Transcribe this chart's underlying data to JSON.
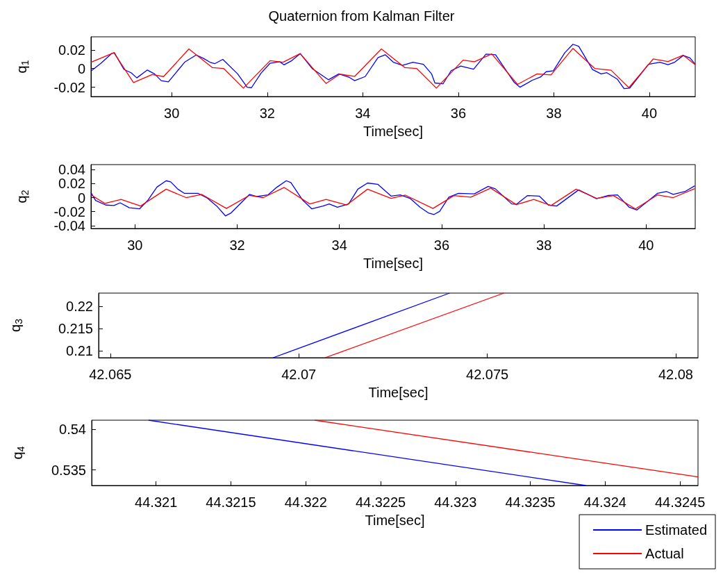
{
  "chart_data": [
    {
      "type": "line",
      "title": "Quaternion from Kalman Filter",
      "xlabel": "Time[sec]",
      "ylabel": "q$_{1}$",
      "xlim": [
        28.31,
        40.96
      ],
      "ylim": [
        -0.03,
        0.034
      ],
      "xticks": [
        30,
        32,
        34,
        36,
        38,
        40
      ],
      "yticks": [
        -0.02,
        0,
        0.02
      ],
      "series": [
        {
          "color": "#0000ff",
          "x": [
            28.32,
            28.52,
            28.74,
            28.8,
            29.0,
            29.15,
            29.27,
            29.49,
            29.64,
            29.78,
            29.93,
            30.27,
            30.51,
            30.66,
            30.8,
            30.9,
            31.07,
            31.38,
            31.58,
            31.67,
            31.87,
            32.06,
            32.26,
            32.35,
            32.5,
            32.69,
            32.94,
            33.28,
            33.5,
            33.72,
            33.83,
            34.05,
            34.32,
            34.47,
            34.64,
            34.83,
            35.05,
            35.27,
            35.44,
            35.51,
            35.68,
            35.85,
            36.05,
            36.32,
            36.58,
            36.78,
            37.17,
            37.29,
            37.55,
            37.72,
            37.84,
            37.99,
            38.23,
            38.4,
            38.52,
            38.81,
            38.99,
            39.11,
            39.33,
            39.47,
            39.59,
            39.98,
            40.22,
            40.39,
            40.53,
            40.71,
            40.85,
            40.96
          ],
          "values": [
            -0.0023,
            0.0057,
            0.016,
            0.017,
            -0.001,
            -0.0045,
            -0.01,
            -0.0016,
            -0.0057,
            -0.013,
            -0.0143,
            0.0068,
            0.0145,
            0.011,
            0.0068,
            0.0052,
            0.0098,
            -0.0057,
            -0.02,
            -0.0205,
            -0.005,
            0.0057,
            0.0073,
            0.004,
            0.008,
            0.016,
            0,
            -0.012,
            -0.0057,
            -0.0095,
            -0.013,
            -0.0086,
            0.0118,
            0.0148,
            0.0068,
            0.0034,
            0.0068,
            0.0045,
            -0.0057,
            -0.0155,
            -0.0164,
            -0.0023,
            0.0027,
            -0.0007,
            0.0155,
            0.0148,
            -0.0148,
            -0.02,
            -0.0125,
            -0.0091,
            -0.0034,
            -0.0023,
            0.017,
            0.026,
            0.0239,
            -0.0011,
            -0.0057,
            -0.0045,
            -0.0114,
            -0.0216,
            -0.0209,
            0.0045,
            0.0068,
            0.0041,
            0.0068,
            0.014,
            0.0114,
            0.0045
          ]
        },
        {
          "color": "#ff0000",
          "x": [
            28.31,
            28.79,
            29.2,
            29.59,
            29.83,
            30.36,
            30.85,
            31.09,
            31.5,
            32.06,
            32.33,
            32.69,
            33.23,
            33.52,
            33.83,
            34.39,
            34.88,
            35.13,
            35.54,
            36.1,
            36.34,
            36.7,
            37.24,
            37.65,
            37.94,
            38.4,
            38.86,
            39.2,
            39.57,
            40.08,
            40.39,
            40.71,
            40.96
          ],
          "values": [
            0.0068,
            0.017,
            -0.015,
            -0.0064,
            -0.0086,
            0.021,
            0.001,
            0,
            -0.021,
            0.0084,
            0.0068,
            0.016,
            -0.016,
            -0.006,
            -0.0084,
            0.021,
            0.001,
            0,
            -0.021,
            0.009,
            0.0073,
            0.0157,
            -0.017,
            -0.0057,
            -0.0068,
            0.0216,
            0,
            -0.0018,
            -0.0205,
            0.0102,
            0.0075,
            0.0143,
            0.004
          ]
        }
      ]
    },
    {
      "type": "line",
      "xlabel": "Time[sec]",
      "ylabel": "q$_{2}$",
      "xlim": [
        29.14,
        40.96
      ],
      "ylim": [
        -0.044,
        0.047
      ],
      "xticks": [
        30,
        32,
        34,
        36,
        38,
        40
      ],
      "yticks": [
        -0.04,
        -0.02,
        0,
        0.02,
        0.04
      ],
      "series": [
        {
          "color": "#0000ff",
          "x": [
            29.14,
            29.23,
            29.43,
            29.59,
            29.71,
            29.89,
            30.09,
            30.25,
            30.43,
            30.61,
            30.7,
            30.84,
            30.97,
            31.24,
            31.42,
            31.6,
            31.77,
            31.88,
            32.24,
            32.38,
            32.6,
            32.78,
            32.96,
            33.05,
            33.28,
            33.46,
            33.68,
            33.8,
            33.96,
            34.18,
            34.36,
            34.55,
            34.75,
            35.01,
            35.19,
            35.38,
            35.58,
            35.74,
            35.85,
            35.96,
            36.14,
            36.33,
            36.64,
            36.91,
            37.05,
            37.37,
            37.46,
            37.68,
            37.91,
            38.09,
            38.25,
            38.68,
            39.03,
            39.26,
            39.44,
            39.67,
            39.82,
            40.22,
            40.4,
            40.53,
            40.76,
            40.95
          ],
          "values": [
            0.007,
            -0.004,
            -0.0106,
            -0.0112,
            -0.0074,
            -0.0144,
            -0.016,
            -0.004,
            0.015,
            0.024,
            0.0224,
            0.012,
            0.006,
            0.006,
            -0.001,
            -0.012,
            -0.026,
            -0.0218,
            0.0045,
            0.0016,
            0.0038,
            0.015,
            0.024,
            0.0215,
            -0.0035,
            -0.016,
            -0.012,
            -0.009,
            -0.0138,
            -0.009,
            0.012,
            0.0208,
            0.019,
            0.0022,
            0.0038,
            -0.001,
            -0.0138,
            -0.0218,
            -0.024,
            -0.0196,
            0.0006,
            0.006,
            0.0054,
            0.016,
            0.0125,
            -0.009,
            -0.0096,
            0.0029,
            0.0022,
            -0.0106,
            -0.012,
            0.011,
            -0.0016,
            0.0032,
            0.0038,
            -0.0138,
            -0.0176,
            0.006,
            0.0087,
            0.0045,
            0.0087,
            0.0167
          ]
        },
        {
          "color": "#ff0000",
          "x": [
            29.14,
            29.41,
            29.73,
            30.11,
            30.61,
            31.0,
            31.31,
            31.79,
            32.24,
            32.51,
            32.92,
            33.42,
            33.74,
            34.14,
            34.55,
            35.01,
            35.29,
            35.83,
            36.24,
            36.57,
            36.96,
            37.46,
            37.8,
            38.14,
            38.63,
            39.03,
            39.36,
            39.79,
            40.22,
            40.53,
            40.95
          ],
          "values": [
            0.004,
            -0.0083,
            -0.0026,
            -0.012,
            0.012,
            0,
            0.0045,
            -0.0154,
            0.0032,
            0,
            0.0144,
            -0.009,
            -0.0026,
            -0.0106,
            0.012,
            -0.001,
            0.0035,
            -0.0154,
            0.0029,
            0.0006,
            0.0135,
            -0.01,
            -0.0026,
            -0.0112,
            0.012,
            -0.001,
            0.0029,
            -0.016,
            0.0038,
            0,
            0.0128
          ]
        }
      ]
    },
    {
      "type": "line",
      "xlabel": "Time[sec]",
      "ylabel": "q$_{3}$",
      "xlim": [
        42.06469,
        42.08059
      ],
      "ylim": [
        0.2084,
        0.223
      ],
      "xticks": [
        42.065,
        42.07,
        42.075,
        42.08
      ],
      "yticks": [
        0.21,
        0.215,
        0.22
      ],
      "series": [
        {
          "color": "#0000ff",
          "x": [
            42.06932,
            42.074
          ],
          "values": [
            0.2084,
            0.223
          ]
        },
        {
          "color": "#ff0000",
          "x": [
            42.0707,
            42.07544
          ],
          "values": [
            0.2084,
            0.223
          ]
        }
      ]
    },
    {
      "type": "line",
      "xlabel": "Time[sec]",
      "ylabel": "q$_{4}$",
      "legend": "bottom right",
      "xlim": [
        44.32057,
        44.32462
      ],
      "ylim": [
        0.5331,
        0.5411
      ],
      "xticks": [
        44.321,
        44.3215,
        44.322,
        44.3225,
        44.323,
        44.3235,
        44.324,
        44.3245
      ],
      "yticks": [
        0.535,
        0.54
      ],
      "series": [
        {
          "name": "Estimated",
          "color": "#0000ff",
          "x": [
            44.32095,
            44.32387
          ],
          "values": [
            0.5411,
            0.5331
          ]
        },
        {
          "name": "Actual",
          "color": "#ff0000",
          "x": [
            44.32206,
            44.32462
          ],
          "values": [
            0.5411,
            0.53415
          ]
        }
      ]
    }
  ]
}
